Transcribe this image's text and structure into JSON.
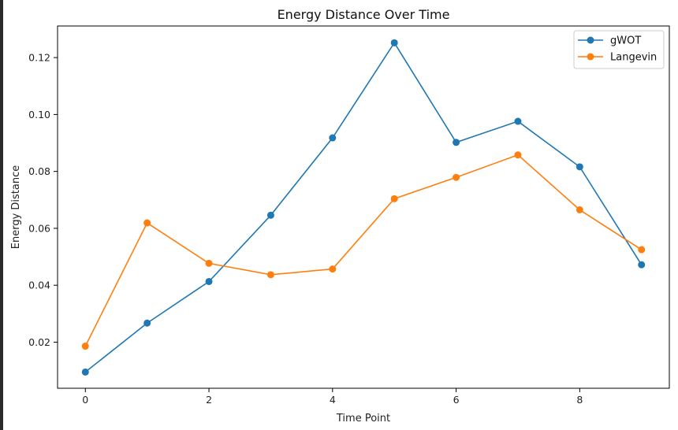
{
  "chart_data": {
    "type": "line",
    "title": "Energy Distance Over Time",
    "xlabel": "Time Point",
    "ylabel": "Energy Distance",
    "x": [
      0,
      1,
      2,
      3,
      4,
      5,
      6,
      7,
      8,
      9
    ],
    "xlim": [
      -0.45,
      9.45
    ],
    "ylim": [
      0.0038,
      0.1311
    ],
    "x_ticks": [
      0,
      2,
      4,
      6,
      8
    ],
    "x_tick_labels": [
      "0",
      "2",
      "4",
      "6",
      "8"
    ],
    "y_ticks": [
      0.02,
      0.04,
      0.06,
      0.08,
      0.1,
      0.12
    ],
    "y_tick_labels": [
      "0.02",
      "0.04",
      "0.06",
      "0.08",
      "0.10",
      "0.12"
    ],
    "grid": false,
    "legend_position": "top-right",
    "series": [
      {
        "name": "gWOT",
        "color": "#1f77b4",
        "values": [
          0.0095,
          0.0267,
          0.0413,
          0.0646,
          0.0918,
          0.1252,
          0.0902,
          0.0976,
          0.0816,
          0.0472
        ]
      },
      {
        "name": "Langevin",
        "color": "#ff7f0e",
        "values": [
          0.0186,
          0.0619,
          0.0477,
          0.0437,
          0.0457,
          0.0704,
          0.0779,
          0.0858,
          0.0665,
          0.0525
        ]
      }
    ]
  }
}
